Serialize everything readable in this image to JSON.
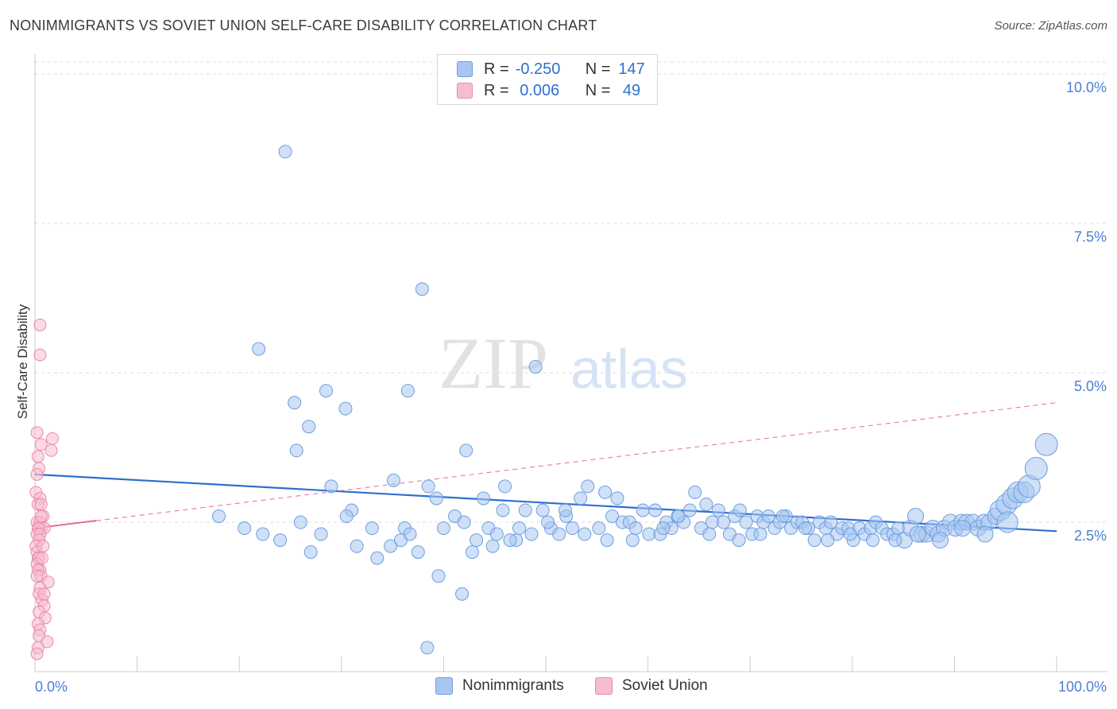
{
  "title": "NONIMMIGRANTS VS SOVIET UNION SELF-CARE DISABILITY CORRELATION CHART",
  "source": "Source: ZipAtlas.com",
  "watermark": {
    "zip": "ZIP",
    "atlas": "atlas"
  },
  "legend": {
    "rows": [
      {
        "r_label": "R =",
        "r_value": "-0.250",
        "n_label": "N =",
        "n_value": "147",
        "color": "#a8c6f0",
        "border": "#6f9ee0"
      },
      {
        "r_label": "R =",
        "r_value": " 0.006",
        "n_label": "N =",
        "n_value": " 49",
        "color": "#f8bcd0",
        "border": "#ea8aac"
      }
    ]
  },
  "bottom_legend": {
    "series1": "Nonimmigrants",
    "series2": "Soviet Union"
  },
  "colors": {
    "blue_fill": "#a8c6f0",
    "blue_stroke": "#6f9ee0",
    "blue_line": "#2f6fd0",
    "pink_fill": "#f8bcd0",
    "pink_stroke": "#ea8aac",
    "pink_line": "#e07095"
  },
  "chart_data": {
    "type": "scatter",
    "title": "NONIMMIGRANTS VS SOVIET UNION SELF-CARE DISABILITY CORRELATION CHART",
    "xlabel": "",
    "ylabel": "Self-Care Disability",
    "xlim": [
      0,
      100
    ],
    "ylim": [
      0,
      10.2
    ],
    "x_tick_labels": [
      "0.0%",
      "100.0%"
    ],
    "y_tick_labels": [
      "2.5%",
      "5.0%",
      "7.5%",
      "10.0%"
    ],
    "y_ticks": [
      2.5,
      5.0,
      7.5,
      10.0
    ],
    "grid": true,
    "legend_position": "top-center",
    "series": [
      {
        "name": "Nonimmigrants",
        "r": -0.25,
        "n": 147,
        "trend": {
          "x": [
            0,
            100
          ],
          "y": [
            3.3,
            2.35
          ]
        },
        "points": [
          [
            24.5,
            8.7
          ],
          [
            37.9,
            6.4
          ],
          [
            21.9,
            5.4
          ],
          [
            49.0,
            5.1
          ],
          [
            25.4,
            4.5
          ],
          [
            26.8,
            4.1
          ],
          [
            28.5,
            4.7
          ],
          [
            30.4,
            4.4
          ],
          [
            36.5,
            4.7
          ],
          [
            25.6,
            3.7
          ],
          [
            42.2,
            3.7
          ],
          [
            29.0,
            3.1
          ],
          [
            35.1,
            3.2
          ],
          [
            38.5,
            3.1
          ],
          [
            46.0,
            3.1
          ],
          [
            39.3,
            2.9
          ],
          [
            43.9,
            2.9
          ],
          [
            31.0,
            2.7
          ],
          [
            26.0,
            2.5
          ],
          [
            28.0,
            2.3
          ],
          [
            30.5,
            2.6
          ],
          [
            33.0,
            2.4
          ],
          [
            35.8,
            2.2
          ],
          [
            36.2,
            2.4
          ],
          [
            36.7,
            2.3
          ],
          [
            40.0,
            2.4
          ],
          [
            41.1,
            2.6
          ],
          [
            42.0,
            2.5
          ],
          [
            43.2,
            2.2
          ],
          [
            44.4,
            2.4
          ],
          [
            45.2,
            2.3
          ],
          [
            45.8,
            2.7
          ],
          [
            47.1,
            2.2
          ],
          [
            47.4,
            2.4
          ],
          [
            48.0,
            2.7
          ],
          [
            49.7,
            2.7
          ],
          [
            50.5,
            2.4
          ],
          [
            51.3,
            2.3
          ],
          [
            52.0,
            2.6
          ],
          [
            52.6,
            2.4
          ],
          [
            53.4,
            2.9
          ],
          [
            54.1,
            3.1
          ],
          [
            55.2,
            2.4
          ],
          [
            55.8,
            3.0
          ],
          [
            56.5,
            2.6
          ],
          [
            57.0,
            2.9
          ],
          [
            57.5,
            2.5
          ],
          [
            58.2,
            2.5
          ],
          [
            58.8,
            2.4
          ],
          [
            59.5,
            2.7
          ],
          [
            60.1,
            2.3
          ],
          [
            60.7,
            2.7
          ],
          [
            61.2,
            2.3
          ],
          [
            61.8,
            2.5
          ],
          [
            62.3,
            2.4
          ],
          [
            62.9,
            2.6
          ],
          [
            63.5,
            2.5
          ],
          [
            64.1,
            2.7
          ],
          [
            64.6,
            3.0
          ],
          [
            65.2,
            2.4
          ],
          [
            65.7,
            2.8
          ],
          [
            66.3,
            2.5
          ],
          [
            66.9,
            2.7
          ],
          [
            67.4,
            2.5
          ],
          [
            68.0,
            2.3
          ],
          [
            68.5,
            2.6
          ],
          [
            69.0,
            2.7
          ],
          [
            69.6,
            2.5
          ],
          [
            70.2,
            2.3
          ],
          [
            70.7,
            2.6
          ],
          [
            71.3,
            2.5
          ],
          [
            71.8,
            2.6
          ],
          [
            72.4,
            2.4
          ],
          [
            72.9,
            2.5
          ],
          [
            73.5,
            2.6
          ],
          [
            74.0,
            2.4
          ],
          [
            74.6,
            2.5
          ],
          [
            75.1,
            2.5
          ],
          [
            75.7,
            2.4
          ],
          [
            76.3,
            2.2
          ],
          [
            76.8,
            2.5
          ],
          [
            77.4,
            2.4
          ],
          [
            77.9,
            2.5
          ],
          [
            78.5,
            2.3
          ],
          [
            79.0,
            2.4
          ],
          [
            79.6,
            2.4
          ],
          [
            80.1,
            2.2
          ],
          [
            80.7,
            2.4
          ],
          [
            81.2,
            2.3
          ],
          [
            81.8,
            2.4
          ],
          [
            82.3,
            2.5
          ],
          [
            82.9,
            2.4
          ],
          [
            83.4,
            2.3
          ],
          [
            84.0,
            2.3
          ],
          [
            84.5,
            2.4
          ],
          [
            85.1,
            2.2
          ],
          [
            85.7,
            2.4
          ],
          [
            86.2,
            2.6
          ],
          [
            86.8,
            2.3
          ],
          [
            87.3,
            2.3
          ],
          [
            87.9,
            2.4
          ],
          [
            88.4,
            2.3
          ],
          [
            89.0,
            2.4
          ],
          [
            89.6,
            2.5
          ],
          [
            90.1,
            2.4
          ],
          [
            90.7,
            2.5
          ],
          [
            91.2,
            2.5
          ],
          [
            91.8,
            2.5
          ],
          [
            92.3,
            2.4
          ],
          [
            92.9,
            2.5
          ],
          [
            93.4,
            2.5
          ],
          [
            94.0,
            2.6
          ],
          [
            94.5,
            2.7
          ],
          [
            95.1,
            2.8
          ],
          [
            95.7,
            2.9
          ],
          [
            96.2,
            3.0
          ],
          [
            96.8,
            3.0
          ],
          [
            97.3,
            3.1
          ],
          [
            98.0,
            3.4
          ],
          [
            99.0,
            3.8
          ],
          [
            18.0,
            2.6
          ],
          [
            20.5,
            2.4
          ],
          [
            22.3,
            2.3
          ],
          [
            24.0,
            2.2
          ],
          [
            27.0,
            2.0
          ],
          [
            31.5,
            2.1
          ],
          [
            33.5,
            1.9
          ],
          [
            34.8,
            2.1
          ],
          [
            37.5,
            2.0
          ],
          [
            39.5,
            1.6
          ],
          [
            41.8,
            1.3
          ],
          [
            42.8,
            2.0
          ],
          [
            44.8,
            2.1
          ],
          [
            46.5,
            2.2
          ],
          [
            48.6,
            2.3
          ],
          [
            50.2,
            2.5
          ],
          [
            51.9,
            2.7
          ],
          [
            53.8,
            2.3
          ],
          [
            56.0,
            2.2
          ],
          [
            58.5,
            2.2
          ],
          [
            61.5,
            2.4
          ],
          [
            63.0,
            2.6
          ],
          [
            66.0,
            2.3
          ],
          [
            68.9,
            2.2
          ],
          [
            71.0,
            2.3
          ],
          [
            73.2,
            2.6
          ],
          [
            75.4,
            2.4
          ],
          [
            77.6,
            2.2
          ],
          [
            79.8,
            2.3
          ],
          [
            82.0,
            2.2
          ],
          [
            84.2,
            2.2
          ],
          [
            86.4,
            2.3
          ],
          [
            88.6,
            2.2
          ],
          [
            90.8,
            2.4
          ],
          [
            93.0,
            2.3
          ],
          [
            95.2,
            2.5
          ],
          [
            38.4,
            0.4
          ]
        ],
        "sizes": "varies; larger bubbles toward high x"
      },
      {
        "name": "Soviet Union",
        "r": 0.006,
        "n": 49,
        "trend": {
          "x": [
            0,
            100
          ],
          "y": [
            2.4,
            4.5
          ]
        },
        "points": [
          [
            0.5,
            5.8
          ],
          [
            0.5,
            5.3
          ],
          [
            0.2,
            4.0
          ],
          [
            1.7,
            3.9
          ],
          [
            0.6,
            3.8
          ],
          [
            1.6,
            3.7
          ],
          [
            0.3,
            3.6
          ],
          [
            0.4,
            3.4
          ],
          [
            0.2,
            3.3
          ],
          [
            0.1,
            3.0
          ],
          [
            0.5,
            2.9
          ],
          [
            0.3,
            2.8
          ],
          [
            0.6,
            2.8
          ],
          [
            0.8,
            2.6
          ],
          [
            0.2,
            2.5
          ],
          [
            0.5,
            2.5
          ],
          [
            0.4,
            2.4
          ],
          [
            0.6,
            2.4
          ],
          [
            0.9,
            2.4
          ],
          [
            0.3,
            2.4
          ],
          [
            0.2,
            2.3
          ],
          [
            0.5,
            2.3
          ],
          [
            0.4,
            2.2
          ],
          [
            0.1,
            2.1
          ],
          [
            0.2,
            2.0
          ],
          [
            0.3,
            1.9
          ],
          [
            0.4,
            1.9
          ],
          [
            0.2,
            1.8
          ],
          [
            0.5,
            1.7
          ],
          [
            0.3,
            1.7
          ],
          [
            0.6,
            1.6
          ],
          [
            0.2,
            1.6
          ],
          [
            1.3,
            1.5
          ],
          [
            0.5,
            1.4
          ],
          [
            0.4,
            1.3
          ],
          [
            0.7,
            1.2
          ],
          [
            0.9,
            1.1
          ],
          [
            0.4,
            1.0
          ],
          [
            1.0,
            0.9
          ],
          [
            0.3,
            0.8
          ],
          [
            0.5,
            0.7
          ],
          [
            0.4,
            0.6
          ],
          [
            1.2,
            0.5
          ],
          [
            0.3,
            0.4
          ],
          [
            0.2,
            0.3
          ],
          [
            0.6,
            2.6
          ],
          [
            0.8,
            2.1
          ],
          [
            0.7,
            1.9
          ],
          [
            0.9,
            1.3
          ]
        ]
      }
    ]
  }
}
